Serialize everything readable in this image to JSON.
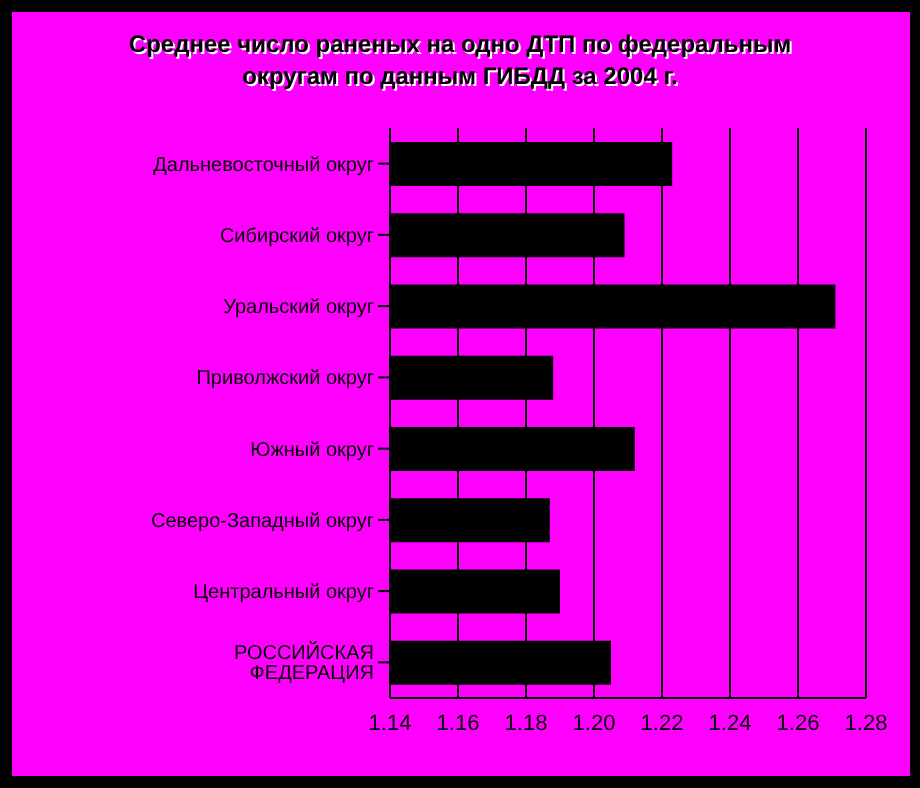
{
  "chart_data": {
    "type": "bar",
    "orientation": "horizontal",
    "title": "Среднее число раненых на одно ДТП по федеральным округам по данным ГИБДД за 2004 г.",
    "categories": [
      "Дальневосточный округ",
      "Сибирский округ",
      "Уральский округ",
      "Приволжский округ",
      "Южный округ",
      "Северо-Западный округ",
      "Центральный округ",
      "РОССИЙСКАЯ ФЕДЕРАЦИЯ"
    ],
    "values": [
      1.223,
      1.209,
      1.271,
      1.188,
      1.212,
      1.187,
      1.19,
      1.205
    ],
    "color": "#000000",
    "xlim": [
      1.14,
      1.28
    ],
    "xticks": [
      {
        "value": 1.14,
        "label": "1.14"
      },
      {
        "value": 1.16,
        "label": "1.16"
      },
      {
        "value": 1.18,
        "label": "1.18"
      },
      {
        "value": 1.2,
        "label": "1.20"
      },
      {
        "value": 1.22,
        "label": "1.22"
      },
      {
        "value": 1.24,
        "label": "1.24"
      },
      {
        "value": 1.26,
        "label": "1.26"
      },
      {
        "value": 1.28,
        "label": "1.28"
      }
    ],
    "grid": "x",
    "legend": false
  }
}
